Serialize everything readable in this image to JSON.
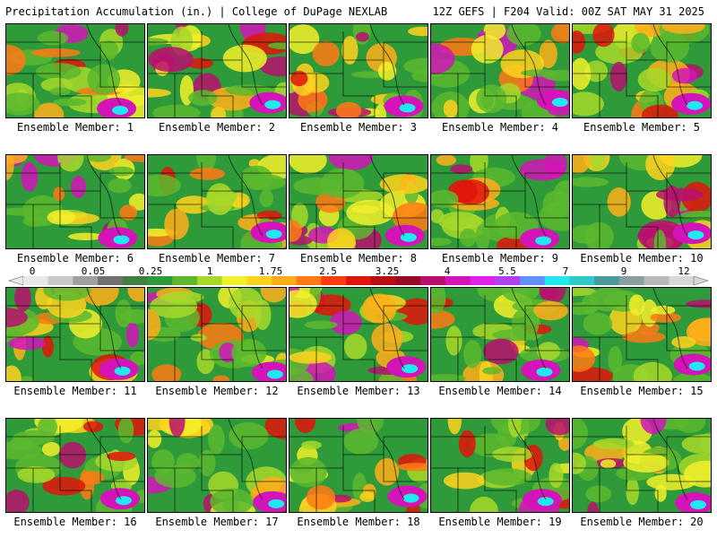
{
  "header": {
    "title_left": "Precipitation Accumulation (in.) | College of DuPage NEXLAB",
    "title_right": "12Z GEFS | F204 Valid: 00Z SAT MAY 31 2025"
  },
  "members": [
    "Ensemble Member: 1",
    "Ensemble Member: 2",
    "Ensemble Member: 3",
    "Ensemble Member: 4",
    "Ensemble Member: 5",
    "Ensemble Member: 6",
    "Ensemble Member: 7",
    "Ensemble Member: 8",
    "Ensemble Member: 9",
    "Ensemble Member: 10",
    "Ensemble Member: 11",
    "Ensemble Member: 12",
    "Ensemble Member: 13",
    "Ensemble Member: 14",
    "Ensemble Member: 15",
    "Ensemble Member: 16",
    "Ensemble Member: 17",
    "Ensemble Member: 18",
    "Ensemble Member: 19",
    "Ensemble Member: 20"
  ],
  "colorbar": {
    "labels": [
      "0",
      "0.05",
      "0.25",
      "1",
      "1.75",
      "2.5",
      "3.25",
      "4",
      "5.5",
      "7",
      "9",
      "12"
    ],
    "colors": [
      "#e8e8e8",
      "#c8c8c8",
      "#a0a0a0",
      "#707070",
      "#3f7f3f",
      "#2e9a3a",
      "#5cb82e",
      "#a6d82a",
      "#f2f02a",
      "#ffd21e",
      "#ffae1a",
      "#ff7a14",
      "#ff3a10",
      "#e0140c",
      "#b80c10",
      "#980a24",
      "#b8106e",
      "#d414b8",
      "#e020e8",
      "#b040f0",
      "#6090f8",
      "#20e8f0",
      "#30c8c8",
      "#4a9a9a",
      "#8aa0a0",
      "#b8b8b8",
      "#d8d8d8"
    ]
  }
}
